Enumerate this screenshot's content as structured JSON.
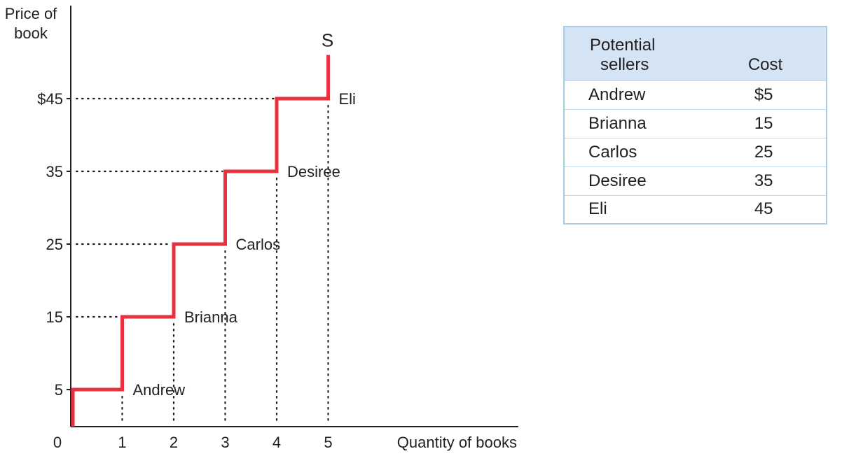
{
  "chart_data": {
    "type": "line",
    "title": "",
    "xlabel": "Quantity of books",
    "ylabel": "Price of book",
    "ylabel_lines": [
      "Price of",
      "book"
    ],
    "series_label": "S",
    "xlim": [
      0,
      8.5
    ],
    "ylim": [
      0,
      56
    ],
    "x_ticks": [
      {
        "value": 0,
        "label": "0"
      },
      {
        "value": 1,
        "label": "1"
      },
      {
        "value": 2,
        "label": "2"
      },
      {
        "value": 3,
        "label": "3"
      },
      {
        "value": 4,
        "label": "4"
      },
      {
        "value": 5,
        "label": "5"
      }
    ],
    "y_ticks": [
      {
        "value": 5,
        "label": "5"
      },
      {
        "value": 15,
        "label": "15"
      },
      {
        "value": 25,
        "label": "25"
      },
      {
        "value": 35,
        "label": "35"
      },
      {
        "value": 45,
        "label": "$45"
      }
    ],
    "steps": [
      {
        "seller": "Andrew",
        "quantity": 1,
        "cost": 5
      },
      {
        "seller": "Brianna",
        "quantity": 2,
        "cost": 15
      },
      {
        "seller": "Carlos",
        "quantity": 3,
        "cost": 25
      },
      {
        "seller": "Desiree",
        "quantity": 4,
        "cost": 35
      },
      {
        "seller": "Eli",
        "quantity": 5,
        "cost": 45
      }
    ],
    "supply_curve": [
      [
        0,
        0
      ],
      [
        0,
        5
      ],
      [
        1,
        5
      ],
      [
        1,
        15
      ],
      [
        2,
        15
      ],
      [
        2,
        25
      ],
      [
        3,
        25
      ],
      [
        3,
        35
      ],
      [
        4,
        35
      ],
      [
        4,
        45
      ],
      [
        5,
        45
      ],
      [
        5,
        51
      ]
    ],
    "colors": {
      "curve": "#e8303e",
      "axis": "#231f20",
      "guide": "#231f20"
    }
  },
  "table": {
    "header": {
      "seller_line1": "Potential",
      "seller_line2": "sellers",
      "cost": "Cost"
    },
    "rows": [
      {
        "seller": "Andrew",
        "cost": "$5"
      },
      {
        "seller": "Brianna",
        "cost": "15"
      },
      {
        "seller": "Carlos",
        "cost": "25"
      },
      {
        "seller": "Desiree",
        "cost": "35"
      },
      {
        "seller": "Eli",
        "cost": "45"
      }
    ],
    "colors": {
      "header_bg": "#d4e4f4",
      "border": "#a9cce3"
    }
  }
}
